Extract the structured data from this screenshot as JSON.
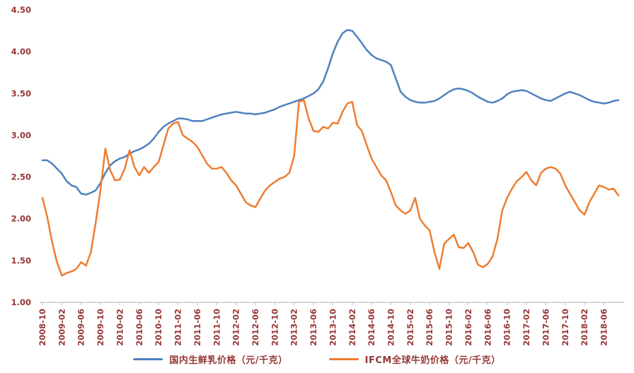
{
  "chart_data": {
    "type": "line",
    "title": "",
    "xlabel": "",
    "ylabel": "",
    "ylim": [
      1.0,
      4.5
    ],
    "grid": false,
    "legend_position": "bottom",
    "axis_text_color": "#953735",
    "axis_line_color": "#BFBFBF",
    "y_ticks": [
      "1.00",
      "1.50",
      "2.00",
      "2.50",
      "3.00",
      "3.50",
      "4.00",
      "4.50"
    ],
    "x_label_every": 4,
    "x_tick_labels": [
      "2008-10",
      "2009-02",
      "2009-06",
      "2009-10",
      "2010-02",
      "2010-06",
      "2010-10",
      "2011-02",
      "2011-06",
      "2011-10",
      "2012-02",
      "2012-06",
      "2012-10",
      "2013-02",
      "2013-06",
      "2013-10",
      "2014-02",
      "2014-06",
      "2014-10",
      "2015-02",
      "2015-06",
      "2015-10",
      "2016-02",
      "2016-06",
      "2016-10",
      "2017-02",
      "2017-06",
      "2017-10",
      "2018-02",
      "2018-06"
    ],
    "series": [
      {
        "name": "国内生鲜乳价格（元/千克）",
        "color": "#4E81BD",
        "values": [
          2.7,
          2.7,
          2.66,
          2.6,
          2.54,
          2.45,
          2.4,
          2.38,
          2.3,
          2.29,
          2.31,
          2.34,
          2.43,
          2.55,
          2.64,
          2.69,
          2.72,
          2.74,
          2.78,
          2.81,
          2.83,
          2.86,
          2.9,
          2.96,
          3.04,
          3.1,
          3.14,
          3.17,
          3.2,
          3.2,
          3.19,
          3.17,
          3.17,
          3.17,
          3.19,
          3.21,
          3.23,
          3.25,
          3.26,
          3.27,
          3.28,
          3.27,
          3.26,
          3.26,
          3.25,
          3.26,
          3.27,
          3.29,
          3.31,
          3.34,
          3.36,
          3.38,
          3.4,
          3.42,
          3.44,
          3.47,
          3.5,
          3.55,
          3.64,
          3.8,
          3.98,
          4.12,
          4.22,
          4.26,
          4.25,
          4.18,
          4.1,
          4.02,
          3.96,
          3.92,
          3.9,
          3.88,
          3.84,
          3.68,
          3.52,
          3.46,
          3.42,
          3.4,
          3.39,
          3.39,
          3.4,
          3.41,
          3.44,
          3.48,
          3.52,
          3.55,
          3.56,
          3.55,
          3.53,
          3.5,
          3.46,
          3.43,
          3.4,
          3.39,
          3.41,
          3.44,
          3.49,
          3.52,
          3.53,
          3.54,
          3.53,
          3.5,
          3.47,
          3.44,
          3.42,
          3.41,
          3.44,
          3.47,
          3.5,
          3.52,
          3.5,
          3.48,
          3.45,
          3.42,
          3.4,
          3.39,
          3.38,
          3.39,
          3.41,
          3.42
        ]
      },
      {
        "name": "IFCM全球牛奶价格（元/千克）",
        "color": "#ED7D31",
        "values": [
          2.25,
          2.02,
          1.72,
          1.48,
          1.32,
          1.35,
          1.37,
          1.4,
          1.48,
          1.44,
          1.6,
          1.95,
          2.35,
          2.84,
          2.58,
          2.46,
          2.47,
          2.6,
          2.82,
          2.62,
          2.52,
          2.62,
          2.55,
          2.62,
          2.68,
          2.88,
          3.08,
          3.14,
          3.16,
          3.0,
          2.96,
          2.92,
          2.86,
          2.76,
          2.66,
          2.6,
          2.6,
          2.62,
          2.55,
          2.46,
          2.4,
          2.3,
          2.2,
          2.16,
          2.14,
          2.24,
          2.34,
          2.4,
          2.44,
          2.48,
          2.5,
          2.55,
          2.75,
          3.4,
          3.42,
          3.2,
          3.05,
          3.04,
          3.1,
          3.08,
          3.15,
          3.14,
          3.28,
          3.38,
          3.4,
          3.12,
          3.05,
          2.88,
          2.72,
          2.62,
          2.52,
          2.46,
          2.32,
          2.16,
          2.1,
          2.06,
          2.1,
          2.25,
          2.0,
          1.92,
          1.86,
          1.6,
          1.4,
          1.7,
          1.76,
          1.81,
          1.66,
          1.65,
          1.71,
          1.6,
          1.45,
          1.42,
          1.46,
          1.55,
          1.76,
          2.1,
          2.25,
          2.36,
          2.45,
          2.5,
          2.56,
          2.46,
          2.4,
          2.55,
          2.6,
          2.62,
          2.6,
          2.54,
          2.4,
          2.3,
          2.2,
          2.1,
          2.05,
          2.2,
          2.3,
          2.4,
          2.38,
          2.35,
          2.36,
          2.28
        ]
      }
    ]
  },
  "legend": {
    "domestic_label": "国内生鲜乳价格（元/千克）",
    "global_label": "IFCM全球牛奶价格（元/千克）"
  },
  "colors": {
    "domestic": "#4E81BD",
    "global": "#ED7D31",
    "axis_text": "#953735",
    "axis_line": "#BFBFBF"
  }
}
